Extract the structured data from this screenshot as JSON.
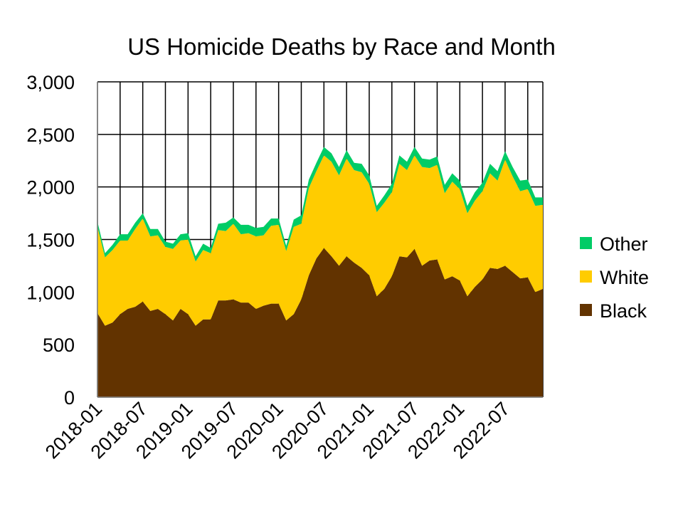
{
  "chart_data": {
    "type": "area",
    "stacked": true,
    "title": "US Homicide Deaths by Race and Month",
    "xlabel": "",
    "ylabel": "",
    "ylim": [
      0,
      3000
    ],
    "yticks": [
      "0",
      "500",
      "1,000",
      "1,500",
      "2,000",
      "2,500",
      "3,000"
    ],
    "ytick_values": [
      0,
      500,
      1000,
      1500,
      2000,
      2500,
      3000
    ],
    "grid": true,
    "legend_position": "right",
    "x": [
      "2018-01",
      "2018-02",
      "2018-03",
      "2018-04",
      "2018-05",
      "2018-06",
      "2018-07",
      "2018-08",
      "2018-09",
      "2018-10",
      "2018-11",
      "2018-12",
      "2019-01",
      "2019-02",
      "2019-03",
      "2019-04",
      "2019-05",
      "2019-06",
      "2019-07",
      "2019-08",
      "2019-09",
      "2019-10",
      "2019-11",
      "2019-12",
      "2020-01",
      "2020-02",
      "2020-03",
      "2020-04",
      "2020-05",
      "2020-06",
      "2020-07",
      "2020-08",
      "2020-09",
      "2020-10",
      "2020-11",
      "2020-12",
      "2021-01",
      "2021-02",
      "2021-03",
      "2021-04",
      "2021-05",
      "2021-06",
      "2021-07",
      "2021-08",
      "2021-09",
      "2021-10",
      "2021-11",
      "2021-12",
      "2022-01",
      "2022-02",
      "2022-03",
      "2022-04",
      "2022-05",
      "2022-06",
      "2022-07",
      "2022-08",
      "2022-09",
      "2022-10",
      "2022-11",
      "2022-12"
    ],
    "xtick_labels": [
      "2018-01",
      "2018-07",
      "2019-01",
      "2019-07",
      "2020-01",
      "2020-07",
      "2021-01",
      "2021-07",
      "2022-01",
      "2022-07"
    ],
    "series": [
      {
        "name": "Black",
        "color": "#623300",
        "values": [
          800,
          680,
          710,
          790,
          840,
          860,
          910,
          820,
          840,
          790,
          730,
          840,
          790,
          680,
          740,
          740,
          920,
          920,
          930,
          900,
          900,
          840,
          870,
          890,
          890,
          730,
          790,
          930,
          1160,
          1320,
          1420,
          1340,
          1250,
          1340,
          1280,
          1230,
          1160,
          960,
          1030,
          1150,
          1340,
          1330,
          1410,
          1250,
          1300,
          1310,
          1120,
          1150,
          1110,
          960,
          1050,
          1120,
          1230,
          1220,
          1250,
          1190,
          1130,
          1140,
          1000,
          1030
        ]
      },
      {
        "name": "White",
        "color": "#FFCC00",
        "values": [
          820,
          650,
          690,
          700,
          650,
          740,
          790,
          710,
          700,
          640,
          680,
          650,
          710,
          610,
          660,
          630,
          670,
          660,
          720,
          650,
          660,
          690,
          670,
          740,
          750,
          660,
          830,
          720,
          830,
          830,
          880,
          900,
          860,
          930,
          880,
          910,
          870,
          800,
          820,
          800,
          880,
          830,
          890,
          940,
          880,
          900,
          820,
          900,
          870,
          790,
          820,
          840,
          900,
          840,
          1010,
          910,
          830,
          840,
          820,
          800
        ]
      },
      {
        "name": "Other",
        "color": "#00CC66",
        "values": [
          50,
          40,
          50,
          60,
          60,
          60,
          50,
          70,
          60,
          50,
          50,
          60,
          60,
          50,
          60,
          50,
          60,
          80,
          60,
          90,
          80,
          80,
          80,
          70,
          60,
          50,
          70,
          80,
          80,
          80,
          80,
          80,
          80,
          80,
          70,
          80,
          80,
          60,
          70,
          80,
          80,
          80,
          80,
          80,
          80,
          80,
          80,
          80,
          80,
          70,
          80,
          80,
          90,
          90,
          80,
          90,
          100,
          90,
          80,
          70
        ]
      }
    ]
  }
}
